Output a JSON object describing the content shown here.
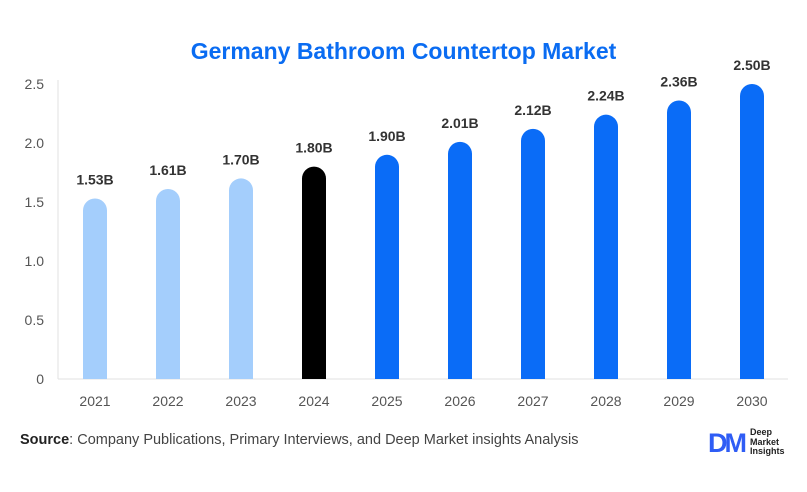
{
  "chart_data": {
    "type": "bar",
    "title": "Germany Bathroom Countertop Market",
    "xlabel": "",
    "ylabel": "",
    "categories": [
      "2021",
      "2022",
      "2023",
      "2024",
      "2025",
      "2026",
      "2027",
      "2028",
      "2029",
      "2030"
    ],
    "values": [
      1.53,
      1.61,
      1.7,
      1.8,
      1.9,
      2.01,
      2.12,
      2.24,
      2.36,
      2.5
    ],
    "data_labels": [
      "1.53B",
      "1.61B",
      "1.70B",
      "1.80B",
      "1.90B",
      "2.01B",
      "2.12B",
      "2.24B",
      "2.36B",
      "2.50B"
    ],
    "bar_colors": [
      "#a4cefc",
      "#a4cefc",
      "#a4cefc",
      "#000000",
      "#0a6cf7",
      "#0a6cf7",
      "#0a6cf7",
      "#0a6cf7",
      "#0a6cf7",
      "#0a6cf7"
    ],
    "yticks": [
      0,
      0.5,
      1.0,
      1.5,
      2.0,
      2.5
    ],
    "ytick_labels": [
      "0",
      "0.5",
      "1.0",
      "1.5",
      "2.0",
      "2.5"
    ],
    "ylim": [
      0,
      2.5
    ],
    "grid": false,
    "legend": "none",
    "unit": "USD Billion"
  },
  "colors": {
    "title": "#0a6cf2",
    "historical": "#a4cefc",
    "base_year": "#000000",
    "forecast": "#0a6cf7"
  },
  "footer": {
    "source_label": "Source",
    "source_text": ": Company Publications, Primary Interviews, and Deep Market insights Analysis"
  },
  "logo": {
    "mark": "DM",
    "line1": "Deep",
    "line2": "Market",
    "line3": "Insights"
  }
}
